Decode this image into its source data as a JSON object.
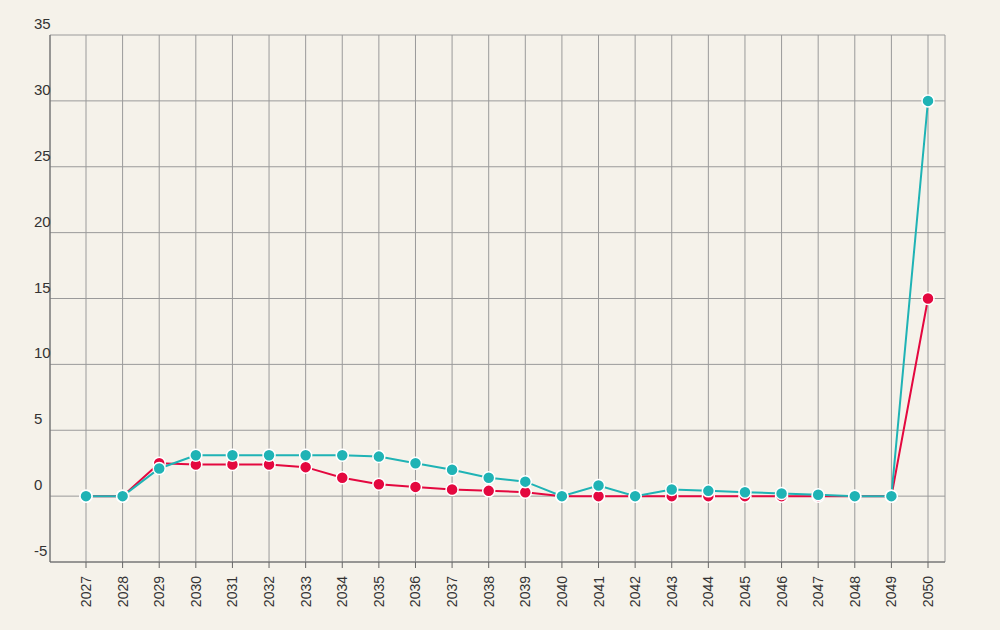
{
  "chart_data": {
    "type": "line",
    "categories": [
      "2027",
      "2028",
      "2029",
      "2030",
      "2031",
      "2032",
      "2033",
      "2034",
      "2035",
      "2036",
      "2037",
      "2038",
      "2039",
      "2040",
      "2041",
      "2042",
      "2043",
      "2044",
      "2045",
      "2046",
      "2047",
      "2048",
      "2049",
      "2050"
    ],
    "series": [
      {
        "color": "#e4083f",
        "values": [
          0,
          0,
          2.5,
          2.4,
          2.4,
          2.4,
          2.2,
          1.4,
          0.9,
          0.7,
          0.5,
          0.4,
          0.3,
          0,
          0,
          0,
          0,
          0,
          0,
          0,
          0,
          0,
          0,
          15
        ]
      },
      {
        "color": "#1fb3b5",
        "values": [
          0,
          0,
          2.1,
          3.1,
          3.1,
          3.1,
          3.1,
          3.1,
          3.0,
          2.5,
          2.0,
          1.4,
          1.1,
          0,
          0.8,
          0,
          0.5,
          0.4,
          0.3,
          0.2,
          0.1,
          0,
          0,
          30
        ]
      }
    ],
    "ylim": [
      -5,
      35
    ],
    "yticks": [
      -5,
      0,
      5,
      10,
      15,
      20,
      25,
      30,
      35
    ],
    "grid": true,
    "marker": "circle"
  }
}
